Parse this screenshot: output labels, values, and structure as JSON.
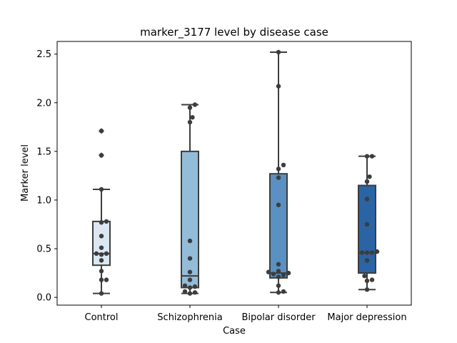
{
  "chart_data": {
    "type": "box",
    "title": "marker_3177 level by disease case",
    "xlabel": "Case",
    "ylabel": "Marker level",
    "ylim": [
      -0.08,
      2.63
    ],
    "yticks": [
      "0.0",
      "0.5",
      "1.0",
      "1.5",
      "2.0",
      "2.5"
    ],
    "grid": false,
    "categories": [
      "Control",
      "Schizophrenia",
      "Bipolar disorder",
      "Major depression"
    ],
    "colors": [
      "#dbe7f2",
      "#93bcd9",
      "#5a91c2",
      "#2a64a4"
    ],
    "boxes": [
      {
        "name": "Control",
        "q1": 0.33,
        "median": 0.45,
        "q3": 0.78,
        "whisker_low": 0.04,
        "whisker_high": 1.11,
        "outliers": [
          1.46,
          1.71
        ]
      },
      {
        "name": "Schizophrenia",
        "q1": 0.1,
        "median": 0.22,
        "q3": 1.5,
        "whisker_low": 0.04,
        "whisker_high": 1.98,
        "outliers": []
      },
      {
        "name": "Bipolar disorder",
        "q1": 0.2,
        "median": 0.25,
        "q3": 1.27,
        "whisker_low": 0.05,
        "whisker_high": 2.52,
        "outliers": []
      },
      {
        "name": "Major depression",
        "q1": 0.25,
        "median": 0.46,
        "q3": 1.15,
        "whisker_low": 0.08,
        "whisker_high": 1.45,
        "outliers": []
      }
    ],
    "points": [
      {
        "name": "Control",
        "values": [
          1.71,
          1.46,
          1.11,
          0.78,
          0.77,
          0.63,
          0.51,
          0.45,
          0.45,
          0.44,
          0.38,
          0.27,
          0.18,
          0.18,
          0.04
        ]
      },
      {
        "name": "Schizophrenia",
        "values": [
          1.98,
          1.95,
          1.85,
          1.8,
          0.58,
          0.4,
          0.26,
          0.18,
          0.12,
          0.11,
          0.1,
          0.06,
          0.05,
          0.04
        ]
      },
      {
        "name": "Bipolar disorder",
        "values": [
          2.52,
          2.17,
          1.36,
          1.32,
          1.23,
          0.95,
          0.34,
          0.27,
          0.26,
          0.25,
          0.24,
          0.23,
          0.21,
          0.12,
          0.06,
          0.05
        ]
      },
      {
        "name": "Major depression",
        "values": [
          1.45,
          1.45,
          1.24,
          1.19,
          1.01,
          0.75,
          0.47,
          0.46,
          0.46,
          0.46,
          0.38,
          0.22,
          0.18,
          0.17,
          0.08
        ]
      }
    ]
  }
}
